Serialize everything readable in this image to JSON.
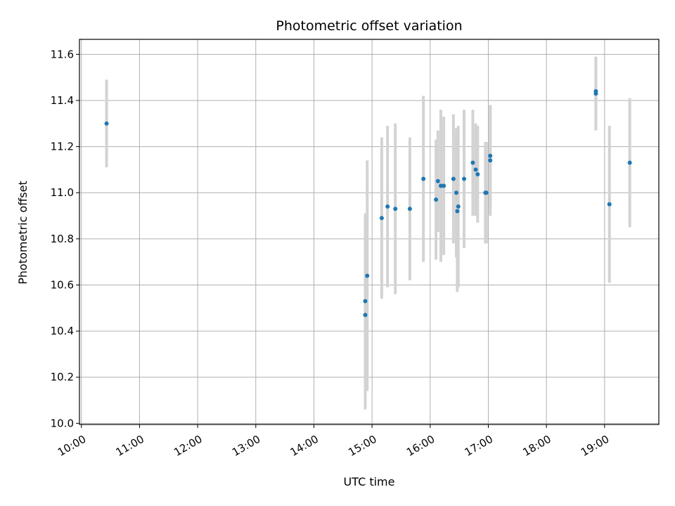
{
  "chart_data": {
    "type": "scatter",
    "title": "Photometric offset variation",
    "xlabel": "UTC time",
    "ylabel": "Photometric offset",
    "xlim": [
      "09:58",
      "19:56"
    ],
    "ylim": [
      9.995,
      11.665
    ],
    "x_ticks": [
      "10:00",
      "11:00",
      "12:00",
      "13:00",
      "14:00",
      "15:00",
      "16:00",
      "17:00",
      "18:00",
      "19:00"
    ],
    "y_ticks": [
      "10.0",
      "10.2",
      "10.4",
      "10.6",
      "10.8",
      "11.0",
      "11.2",
      "11.4",
      "11.6"
    ],
    "grid": true,
    "marker_color": "#1f77b4",
    "errorbar_color": "#d3d3d3",
    "points": [
      {
        "x": "10:26",
        "y": 11.3,
        "err": 0.19
      },
      {
        "x": "14:53",
        "y": 10.47,
        "err": 0.41
      },
      {
        "x": "14:53",
        "y": 10.53,
        "err": 0.38
      },
      {
        "x": "14:55",
        "y": 10.64,
        "err": 0.5
      },
      {
        "x": "15:10",
        "y": 10.89,
        "err": 0.35
      },
      {
        "x": "15:16",
        "y": 10.94,
        "err": 0.35
      },
      {
        "x": "15:24",
        "y": 10.93,
        "err": 0.37
      },
      {
        "x": "15:39",
        "y": 10.93,
        "err": 0.31
      },
      {
        "x": "15:53",
        "y": 11.06,
        "err": 0.36
      },
      {
        "x": "16:06",
        "y": 10.97,
        "err": 0.26
      },
      {
        "x": "16:08",
        "y": 11.05,
        "err": 0.22
      },
      {
        "x": "16:11",
        "y": 11.03,
        "err": 0.33
      },
      {
        "x": "16:14",
        "y": 11.03,
        "err": 0.3
      },
      {
        "x": "16:24",
        "y": 11.06,
        "err": 0.28
      },
      {
        "x": "16:27",
        "y": 11.0,
        "err": 0.28
      },
      {
        "x": "16:28",
        "y": 10.92,
        "err": 0.35
      },
      {
        "x": "16:29",
        "y": 10.94,
        "err": 0.35
      },
      {
        "x": "16:35",
        "y": 11.06,
        "err": 0.3
      },
      {
        "x": "16:44",
        "y": 11.13,
        "err": 0.23
      },
      {
        "x": "16:47",
        "y": 11.1,
        "err": 0.2
      },
      {
        "x": "16:49",
        "y": 11.08,
        "err": 0.21
      },
      {
        "x": "16:57",
        "y": 11.0,
        "err": 0.22
      },
      {
        "x": "16:58",
        "y": 11.0,
        "err": 0.22
      },
      {
        "x": "17:02",
        "y": 11.14,
        "err": 0.24
      },
      {
        "x": "17:02",
        "y": 11.16,
        "err": 0.22
      },
      {
        "x": "18:51",
        "y": 11.43,
        "err": 0.16
      },
      {
        "x": "18:51",
        "y": 11.44,
        "err": 0.15
      },
      {
        "x": "19:05",
        "y": 10.95,
        "err": 0.34
      },
      {
        "x": "19:26",
        "y": 11.13,
        "err": 0.28
      }
    ]
  }
}
